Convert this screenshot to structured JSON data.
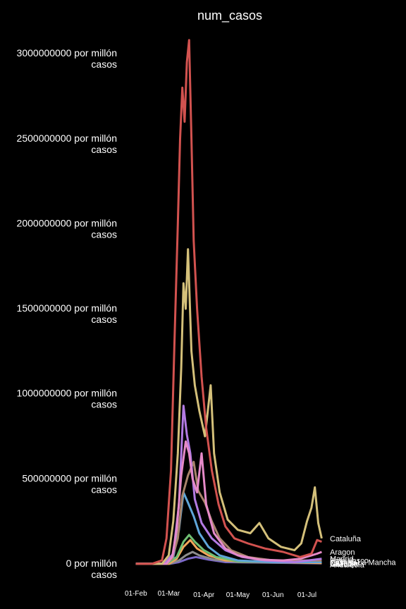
{
  "chart_data": {
    "type": "line",
    "title": "num_casos",
    "xlabel": "",
    "ylabel": "",
    "x_range": [
      "2020-01-29",
      "2020-07-20"
    ],
    "ylim": [
      -50000000,
      3150000000
    ],
    "yticks": [
      {
        "value": 0,
        "line1": "0 por millón",
        "line2": "casos"
      },
      {
        "value": 500000000,
        "line1": "500000000 por millón",
        "line2": "casos"
      },
      {
        "value": 1000000000,
        "line1": "1000000000 por millón",
        "line2": "casos"
      },
      {
        "value": 1500000000,
        "line1": "1500000000 por millón",
        "line2": "casos"
      },
      {
        "value": 2000000000,
        "line1": "2000000000 por millón",
        "line2": "casos"
      },
      {
        "value": 2500000000,
        "line1": "2500000000 por millón",
        "line2": "casos"
      },
      {
        "value": 3000000000,
        "line1": "3000000000 por millón",
        "line2": "casos"
      }
    ],
    "xticks": [
      {
        "date": "2020-02-01",
        "label": "01-Feb"
      },
      {
        "date": "2020-03-01",
        "label": "01-Mar"
      },
      {
        "date": "2020-04-01",
        "label": "01-Apr"
      },
      {
        "date": "2020-05-01",
        "label": "01-May"
      },
      {
        "date": "2020-06-01",
        "label": "01-Jun"
      },
      {
        "date": "2020-07-01",
        "label": "01-Jul"
      }
    ],
    "grid": false,
    "legend": "none",
    "series": [
      {
        "name": "",
        "color": "#d2524f",
        "points": [
          [
            "2020-02-01",
            0
          ],
          [
            "2020-02-15",
            0
          ],
          [
            "2020-02-24",
            20000000
          ],
          [
            "2020-02-28",
            150000000
          ],
          [
            "2020-03-03",
            550000000
          ],
          [
            "2020-03-06",
            1300000000
          ],
          [
            "2020-03-09",
            2000000000
          ],
          [
            "2020-03-11",
            2500000000
          ],
          [
            "2020-03-13",
            2800000000
          ],
          [
            "2020-03-15",
            2600000000
          ],
          [
            "2020-03-17",
            2950000000
          ],
          [
            "2020-03-19",
            3080000000
          ],
          [
            "2020-03-21",
            2500000000
          ],
          [
            "2020-03-23",
            1900000000
          ],
          [
            "2020-03-26",
            1500000000
          ],
          [
            "2020-03-30",
            1100000000
          ],
          [
            "2020-04-03",
            800000000
          ],
          [
            "2020-04-08",
            550000000
          ],
          [
            "2020-04-14",
            350000000
          ],
          [
            "2020-04-20",
            220000000
          ],
          [
            "2020-04-28",
            150000000
          ],
          [
            "2020-05-10",
            120000000
          ],
          [
            "2020-05-25",
            90000000
          ],
          [
            "2020-06-10",
            70000000
          ],
          [
            "2020-06-25",
            40000000
          ],
          [
            "2020-07-05",
            60000000
          ],
          [
            "2020-07-10",
            140000000
          ],
          [
            "2020-07-14",
            130000000
          ]
        ]
      },
      {
        "name": "Cataluña",
        "color": "#d4c07a",
        "points": [
          [
            "2020-02-01",
            0
          ],
          [
            "2020-02-24",
            0
          ],
          [
            "2020-03-01",
            50000000
          ],
          [
            "2020-03-05",
            250000000
          ],
          [
            "2020-03-09",
            650000000
          ],
          [
            "2020-03-12",
            1150000000
          ],
          [
            "2020-03-14",
            1650000000
          ],
          [
            "2020-03-16",
            1500000000
          ],
          [
            "2020-03-18",
            1850000000
          ],
          [
            "2020-03-21",
            1250000000
          ],
          [
            "2020-03-24",
            1050000000
          ],
          [
            "2020-03-28",
            900000000
          ],
          [
            "2020-04-02",
            750000000
          ],
          [
            "2020-04-07",
            1050000000
          ],
          [
            "2020-04-10",
            650000000
          ],
          [
            "2020-04-15",
            420000000
          ],
          [
            "2020-04-22",
            260000000
          ],
          [
            "2020-05-01",
            200000000
          ],
          [
            "2020-05-12",
            180000000
          ],
          [
            "2020-05-20",
            240000000
          ],
          [
            "2020-05-28",
            150000000
          ],
          [
            "2020-06-08",
            100000000
          ],
          [
            "2020-06-20",
            80000000
          ],
          [
            "2020-06-26",
            120000000
          ],
          [
            "2020-07-01",
            250000000
          ],
          [
            "2020-07-05",
            330000000
          ],
          [
            "2020-07-08",
            450000000
          ],
          [
            "2020-07-11",
            240000000
          ],
          [
            "2020-07-14",
            150000000
          ]
        ]
      },
      {
        "name": "Aragon",
        "color": "#e58ac8",
        "points": [
          [
            "2020-02-01",
            0
          ],
          [
            "2020-02-28",
            0
          ],
          [
            "2020-03-04",
            40000000
          ],
          [
            "2020-03-08",
            200000000
          ],
          [
            "2020-03-12",
            520000000
          ],
          [
            "2020-03-16",
            720000000
          ],
          [
            "2020-03-19",
            650000000
          ],
          [
            "2020-03-22",
            500000000
          ],
          [
            "2020-03-26",
            420000000
          ],
          [
            "2020-03-30",
            650000000
          ],
          [
            "2020-04-03",
            350000000
          ],
          [
            "2020-04-10",
            180000000
          ],
          [
            "2020-04-20",
            90000000
          ],
          [
            "2020-05-01",
            50000000
          ],
          [
            "2020-05-20",
            25000000
          ],
          [
            "2020-06-10",
            20000000
          ],
          [
            "2020-06-25",
            30000000
          ],
          [
            "2020-07-05",
            50000000
          ],
          [
            "2020-07-10",
            60000000
          ],
          [
            "2020-07-14",
            70000000
          ]
        ]
      },
      {
        "name": "Madrid",
        "color": "#b37be3",
        "points": [
          [
            "2020-02-01",
            0
          ],
          [
            "2020-02-26",
            0
          ],
          [
            "2020-03-05",
            60000000
          ],
          [
            "2020-03-10",
            350000000
          ],
          [
            "2020-03-14",
            930000000
          ],
          [
            "2020-03-17",
            760000000
          ],
          [
            "2020-03-20",
            650000000
          ],
          [
            "2020-03-24",
            380000000
          ],
          [
            "2020-03-30",
            240000000
          ],
          [
            "2020-04-08",
            150000000
          ],
          [
            "2020-04-20",
            80000000
          ],
          [
            "2020-05-05",
            40000000
          ],
          [
            "2020-05-25",
            20000000
          ],
          [
            "2020-06-20",
            10000000
          ],
          [
            "2020-07-14",
            30000000
          ]
        ]
      },
      {
        "name": "País Vasco",
        "color": "#a8846b",
        "points": [
          [
            "2020-02-01",
            0
          ],
          [
            "2020-02-26",
            0
          ],
          [
            "2020-03-04",
            30000000
          ],
          [
            "2020-03-09",
            150000000
          ],
          [
            "2020-03-13",
            400000000
          ],
          [
            "2020-03-18",
            520000000
          ],
          [
            "2020-03-23",
            600000000
          ],
          [
            "2020-03-27",
            430000000
          ],
          [
            "2020-04-02",
            360000000
          ],
          [
            "2020-04-08",
            250000000
          ],
          [
            "2020-04-15",
            150000000
          ],
          [
            "2020-04-25",
            80000000
          ],
          [
            "2020-05-10",
            40000000
          ],
          [
            "2020-06-01",
            20000000
          ],
          [
            "2020-07-14",
            20000000
          ]
        ]
      },
      {
        "name": "Castilla La Mancha",
        "color": "#5fa6d9",
        "points": [
          [
            "2020-02-01",
            0
          ],
          [
            "2020-02-27",
            0
          ],
          [
            "2020-03-05",
            40000000
          ],
          [
            "2020-03-10",
            200000000
          ],
          [
            "2020-03-14",
            420000000
          ],
          [
            "2020-03-18",
            360000000
          ],
          [
            "2020-03-23",
            280000000
          ],
          [
            "2020-03-28",
            180000000
          ],
          [
            "2020-04-05",
            100000000
          ],
          [
            "2020-04-15",
            50000000
          ],
          [
            "2020-05-01",
            20000000
          ],
          [
            "2020-06-01",
            10000000
          ],
          [
            "2020-07-14",
            10000000
          ]
        ]
      },
      {
        "name": "Navarra",
        "color": "#6fbf73",
        "points": [
          [
            "2020-02-01",
            0
          ],
          [
            "2020-02-28",
            0
          ],
          [
            "2020-03-08",
            40000000
          ],
          [
            "2020-03-14",
            130000000
          ],
          [
            "2020-03-19",
            170000000
          ],
          [
            "2020-03-24",
            130000000
          ],
          [
            "2020-04-01",
            80000000
          ],
          [
            "2020-04-12",
            40000000
          ],
          [
            "2020-05-01",
            15000000
          ],
          [
            "2020-07-14",
            10000000
          ]
        ]
      },
      {
        "name": "La Rioja",
        "color": "#f2a65a",
        "points": [
          [
            "2020-02-01",
            0
          ],
          [
            "2020-03-01",
            0
          ],
          [
            "2020-03-08",
            30000000
          ],
          [
            "2020-03-14",
            100000000
          ],
          [
            "2020-03-20",
            140000000
          ],
          [
            "2020-03-26",
            90000000
          ],
          [
            "2020-04-05",
            50000000
          ],
          [
            "2020-04-20",
            20000000
          ],
          [
            "2020-07-14",
            5000000
          ]
        ]
      },
      {
        "name": "Galicia",
        "color": "#8c8c8c",
        "points": [
          [
            "2020-02-01",
            0
          ],
          [
            "2020-03-02",
            0
          ],
          [
            "2020-03-10",
            20000000
          ],
          [
            "2020-03-16",
            50000000
          ],
          [
            "2020-03-22",
            70000000
          ],
          [
            "2020-03-28",
            50000000
          ],
          [
            "2020-04-10",
            25000000
          ],
          [
            "2020-05-01",
            10000000
          ],
          [
            "2020-07-14",
            5000000
          ]
        ]
      },
      {
        "name": "Andalucía",
        "color": "#7b68c8",
        "points": [
          [
            "2020-02-01",
            0
          ],
          [
            "2020-03-02",
            0
          ],
          [
            "2020-03-10",
            10000000
          ],
          [
            "2020-03-18",
            30000000
          ],
          [
            "2020-03-25",
            40000000
          ],
          [
            "2020-04-05",
            25000000
          ],
          [
            "2020-04-20",
            10000000
          ],
          [
            "2020-07-14",
            3000000
          ]
        ]
      }
    ],
    "end_labels": [
      {
        "text": "Cataluña",
        "value": 150000000
      },
      {
        "text": "Aragon",
        "value": 70000000
      },
      {
        "text": "Madrid",
        "value": 30000000
      },
      {
        "text": "País Vasco",
        "value": 20000000
      },
      {
        "text": "Castilla La Mancha",
        "value": 10000000
      },
      {
        "text": "Navarra",
        "value": 5000000
      },
      {
        "text": "La Rioja",
        "value": 2000000
      },
      {
        "text": "Galicia",
        "value": 0
      },
      {
        "text": "Andalucía",
        "value": -5000000
      }
    ]
  }
}
